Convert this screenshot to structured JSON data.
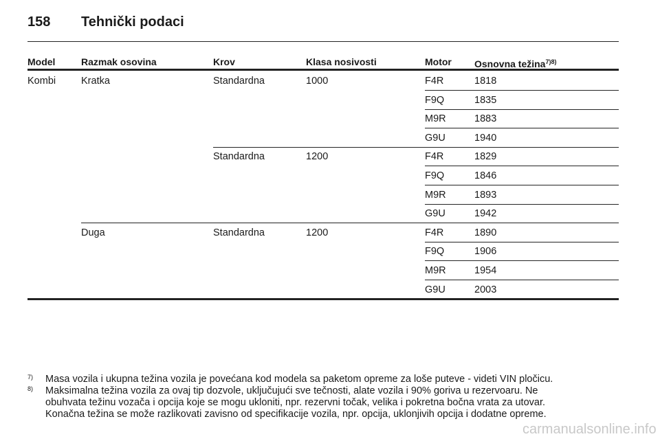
{
  "header": {
    "page_number": "158",
    "title": "Tehnički podaci"
  },
  "table": {
    "columns": [
      "Model",
      "Razmak osovina",
      "Krov",
      "Klasa nosivosti",
      "Motor",
      "Osnovna težina"
    ],
    "column_note": "7)8)",
    "models": [
      {
        "name": "Kombi",
        "wheelbases": [
          {
            "name": "Kratka",
            "loads": [
              {
                "roof": "Standardna",
                "class": "1000",
                "engines": [
                  {
                    "motor": "F4R",
                    "weight": "1818"
                  },
                  {
                    "motor": "F9Q",
                    "weight": "1835"
                  },
                  {
                    "motor": "M9R",
                    "weight": "1883"
                  },
                  {
                    "motor": "G9U",
                    "weight": "1940"
                  }
                ]
              },
              {
                "roof": "Standardna",
                "class": "1200",
                "engines": [
                  {
                    "motor": "F4R",
                    "weight": "1829"
                  },
                  {
                    "motor": "F9Q",
                    "weight": "1846"
                  },
                  {
                    "motor": "M9R",
                    "weight": "1893"
                  },
                  {
                    "motor": "G9U",
                    "weight": "1942"
                  }
                ]
              }
            ]
          },
          {
            "name": "Duga",
            "loads": [
              {
                "roof": "Standardna",
                "class": "1200",
                "engines": [
                  {
                    "motor": "F4R",
                    "weight": "1890"
                  },
                  {
                    "motor": "F9Q",
                    "weight": "1906"
                  },
                  {
                    "motor": "M9R",
                    "weight": "1954"
                  },
                  {
                    "motor": "G9U",
                    "weight": "2003"
                  }
                ]
              }
            ]
          }
        ]
      }
    ]
  },
  "footnotes": [
    {
      "mark": "7)",
      "lines": [
        "Masa vozila i ukupna težina vozila je povećana kod modela sa paketom opreme za loše puteve - videti VIN pločicu."
      ]
    },
    {
      "mark": "8)",
      "lines": [
        "Maksimalna težina vozila za ovaj tip dozvole, uključujući sve tečnosti, alate vozila i 90% goriva u rezervoaru. Ne",
        "obuhvata težinu vozača i opcija koje se mogu ukloniti, npr. rezervni točak, velika i pokretna bočna vrata za utovar.",
        "Konačna težina se može razlikovati zavisno od specifikacije vozila, npr. opcija, uklonjivih opcija i dodatne opreme."
      ]
    }
  ],
  "watermark": "carmanualsonline.info"
}
